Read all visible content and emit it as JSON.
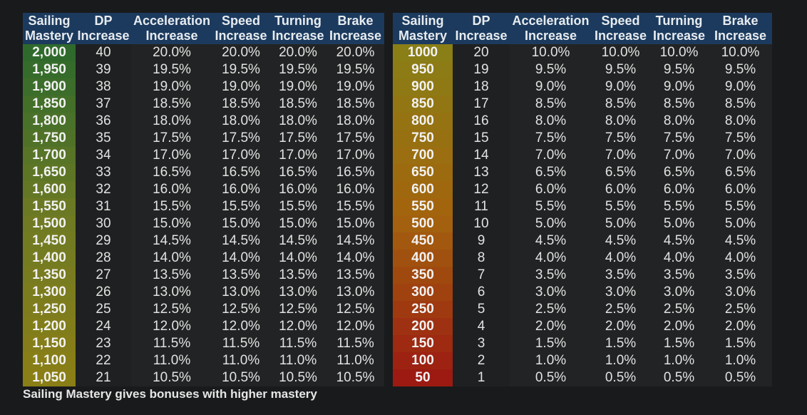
{
  "tables": [
    {
      "headers": [
        [
          "Sailing",
          "Mastery"
        ],
        [
          "DP",
          "Increase"
        ],
        [
          "Acceleration",
          "Increase"
        ],
        [
          "Speed",
          "Increase"
        ],
        [
          "Turning",
          "Increase"
        ],
        [
          "Brake",
          "Increase"
        ]
      ],
      "mastery_gradient": [
        "#2f6a2c",
        "#6e7a24",
        "#8a7e16"
      ],
      "rows": [
        [
          "2,000",
          "40",
          "20.0%",
          "20.0%",
          "20.0%",
          "20.0%"
        ],
        [
          "1,950",
          "39",
          "19.5%",
          "19.5%",
          "19.5%",
          "19.5%"
        ],
        [
          "1,900",
          "38",
          "19.0%",
          "19.0%",
          "19.0%",
          "19.0%"
        ],
        [
          "1,850",
          "37",
          "18.5%",
          "18.5%",
          "18.5%",
          "18.5%"
        ],
        [
          "1,800",
          "36",
          "18.0%",
          "18.0%",
          "18.0%",
          "18.0%"
        ],
        [
          "1,750",
          "35",
          "17.5%",
          "17.5%",
          "17.5%",
          "17.5%"
        ],
        [
          "1,700",
          "34",
          "17.0%",
          "17.0%",
          "17.0%",
          "17.0%"
        ],
        [
          "1,650",
          "33",
          "16.5%",
          "16.5%",
          "16.5%",
          "16.5%"
        ],
        [
          "1,600",
          "32",
          "16.0%",
          "16.0%",
          "16.0%",
          "16.0%"
        ],
        [
          "1,550",
          "31",
          "15.5%",
          "15.5%",
          "15.5%",
          "15.5%"
        ],
        [
          "1,500",
          "30",
          "15.0%",
          "15.0%",
          "15.0%",
          "15.0%"
        ],
        [
          "1,450",
          "29",
          "14.5%",
          "14.5%",
          "14.5%",
          "14.5%"
        ],
        [
          "1,400",
          "28",
          "14.0%",
          "14.0%",
          "14.0%",
          "14.0%"
        ],
        [
          "1,350",
          "27",
          "13.5%",
          "13.5%",
          "13.5%",
          "13.5%"
        ],
        [
          "1,300",
          "26",
          "13.0%",
          "13.0%",
          "13.0%",
          "13.0%"
        ],
        [
          "1,250",
          "25",
          "12.5%",
          "12.5%",
          "12.5%",
          "12.5%"
        ],
        [
          "1,200",
          "24",
          "12.0%",
          "12.0%",
          "12.0%",
          "12.0%"
        ],
        [
          "1,150",
          "23",
          "11.5%",
          "11.5%",
          "11.5%",
          "11.5%"
        ],
        [
          "1,100",
          "22",
          "11.0%",
          "11.0%",
          "11.0%",
          "11.0%"
        ],
        [
          "1,050",
          "21",
          "10.5%",
          "10.5%",
          "10.5%",
          "10.5%"
        ]
      ]
    },
    {
      "headers": [
        [
          "Sailing",
          "Mastery"
        ],
        [
          "DP",
          "Increase"
        ],
        [
          "Acceleration",
          "Increase"
        ],
        [
          "Speed",
          "Increase"
        ],
        [
          "Turning",
          "Increase"
        ],
        [
          "Brake",
          "Increase"
        ]
      ],
      "mastery_gradient": [
        "#8a7e16",
        "#a3640e",
        "#9c1a12"
      ],
      "rows": [
        [
          "1000",
          "20",
          "10.0%",
          "10.0%",
          "10.0%",
          "10.0%"
        ],
        [
          "950",
          "19",
          "9.5%",
          "9.5%",
          "9.5%",
          "9.5%"
        ],
        [
          "900",
          "18",
          "9.0%",
          "9.0%",
          "9.0%",
          "9.0%"
        ],
        [
          "850",
          "17",
          "8.5%",
          "8.5%",
          "8.5%",
          "8.5%"
        ],
        [
          "800",
          "16",
          "8.0%",
          "8.0%",
          "8.0%",
          "8.0%"
        ],
        [
          "750",
          "15",
          "7.5%",
          "7.5%",
          "7.5%",
          "7.5%"
        ],
        [
          "700",
          "14",
          "7.0%",
          "7.0%",
          "7.0%",
          "7.0%"
        ],
        [
          "650",
          "13",
          "6.5%",
          "6.5%",
          "6.5%",
          "6.5%"
        ],
        [
          "600",
          "12",
          "6.0%",
          "6.0%",
          "6.0%",
          "6.0%"
        ],
        [
          "550",
          "11",
          "5.5%",
          "5.5%",
          "5.5%",
          "5.5%"
        ],
        [
          "500",
          "10",
          "5.0%",
          "5.0%",
          "5.0%",
          "5.0%"
        ],
        [
          "450",
          "9",
          "4.5%",
          "4.5%",
          "4.5%",
          "4.5%"
        ],
        [
          "400",
          "8",
          "4.0%",
          "4.0%",
          "4.0%",
          "4.0%"
        ],
        [
          "350",
          "7",
          "3.5%",
          "3.5%",
          "3.5%",
          "3.5%"
        ],
        [
          "300",
          "6",
          "3.0%",
          "3.0%",
          "3.0%",
          "3.0%"
        ],
        [
          "250",
          "5",
          "2.5%",
          "2.5%",
          "2.5%",
          "2.5%"
        ],
        [
          "200",
          "4",
          "2.0%",
          "2.0%",
          "2.0%",
          "2.0%"
        ],
        [
          "150",
          "3",
          "1.5%",
          "1.5%",
          "1.5%",
          "1.5%"
        ],
        [
          "100",
          "2",
          "1.0%",
          "1.0%",
          "1.0%",
          "1.0%"
        ],
        [
          "50",
          "1",
          "0.5%",
          "0.5%",
          "0.5%",
          "0.5%"
        ]
      ]
    }
  ],
  "caption": "Sailing Mastery gives bonuses with higher mastery",
  "colors": {
    "header_bg": "#1b3a5e",
    "cell_bg": "#222324",
    "page_bg": "#191a1b"
  }
}
